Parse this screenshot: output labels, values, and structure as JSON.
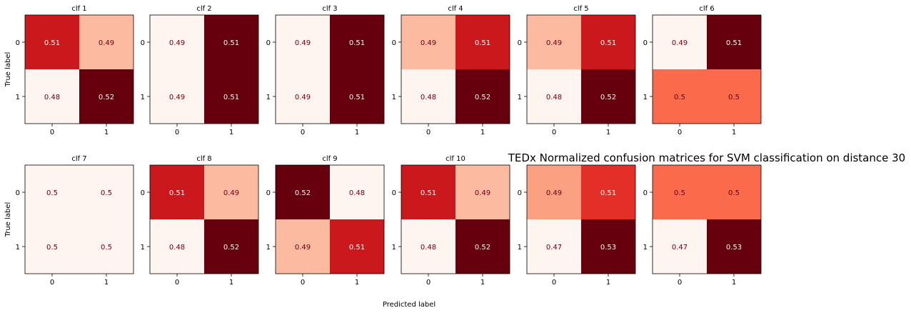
{
  "figure": {
    "suptitle": "TEDx Normalized confusion matrices for SVM classification on distance 30",
    "xlabel": "Predicted label",
    "ylabel": "True label"
  },
  "colormap": [
    "#fff5f0",
    "#fee0d2",
    "#fcbba1",
    "#fc9272",
    "#fb6a4a",
    "#ef3b2c",
    "#cb181d",
    "#a50f15",
    "#67000d"
  ],
  "text_colors": {
    "on_light": "#67000d",
    "on_dark": "#fff5f0"
  },
  "chart_data": [
    {
      "type": "heatmap",
      "title": "clf 1",
      "x_ticks": [
        "0",
        "1"
      ],
      "y_ticks": [
        "0",
        "1"
      ],
      "values": [
        [
          0.51,
          0.49
        ],
        [
          0.48,
          0.52
        ]
      ],
      "labels": [
        [
          "0.51",
          "0.49"
        ],
        [
          "0.48",
          "0.52"
        ]
      ]
    },
    {
      "type": "heatmap",
      "title": "clf 2",
      "x_ticks": [
        "0",
        "1"
      ],
      "y_ticks": [
        "0",
        "1"
      ],
      "values": [
        [
          0.49,
          0.51
        ],
        [
          0.49,
          0.51
        ]
      ],
      "labels": [
        [
          "0.49",
          "0.51"
        ],
        [
          "0.49",
          "0.51"
        ]
      ]
    },
    {
      "type": "heatmap",
      "title": "clf 3",
      "x_ticks": [
        "0",
        "1"
      ],
      "y_ticks": [
        "0",
        "1"
      ],
      "values": [
        [
          0.49,
          0.51
        ],
        [
          0.49,
          0.51
        ]
      ],
      "labels": [
        [
          "0.49",
          "0.51"
        ],
        [
          "0.49",
          "0.51"
        ]
      ]
    },
    {
      "type": "heatmap",
      "title": "clf 4",
      "x_ticks": [
        "0",
        "1"
      ],
      "y_ticks": [
        "0",
        "1"
      ],
      "values": [
        [
          0.49,
          0.51
        ],
        [
          0.48,
          0.52
        ]
      ],
      "labels": [
        [
          "0.49",
          "0.51"
        ],
        [
          "0.48",
          "0.52"
        ]
      ]
    },
    {
      "type": "heatmap",
      "title": "clf 5",
      "x_ticks": [
        "0",
        "1"
      ],
      "y_ticks": [
        "0",
        "1"
      ],
      "values": [
        [
          0.49,
          0.51
        ],
        [
          0.48,
          0.52
        ]
      ],
      "labels": [
        [
          "0.49",
          "0.51"
        ],
        [
          "0.48",
          "0.52"
        ]
      ]
    },
    {
      "type": "heatmap",
      "title": "clf 6",
      "x_ticks": [
        "0",
        "1"
      ],
      "y_ticks": [
        "0",
        "1"
      ],
      "values": [
        [
          0.49,
          0.51
        ],
        [
          0.5,
          0.5
        ]
      ],
      "labels": [
        [
          "0.49",
          "0.51"
        ],
        [
          "0.5",
          "0.5"
        ]
      ]
    },
    {
      "type": "heatmap",
      "title": "clf 7",
      "x_ticks": [
        "0",
        "1"
      ],
      "y_ticks": [
        "0",
        "1"
      ],
      "values": [
        [
          0.5,
          0.5
        ],
        [
          0.5,
          0.5
        ]
      ],
      "labels": [
        [
          "0.5",
          "0.5"
        ],
        [
          "0.5",
          "0.5"
        ]
      ]
    },
    {
      "type": "heatmap",
      "title": "clf 8",
      "x_ticks": [
        "0",
        "1"
      ],
      "y_ticks": [
        "0",
        "1"
      ],
      "values": [
        [
          0.51,
          0.49
        ],
        [
          0.48,
          0.52
        ]
      ],
      "labels": [
        [
          "0.51",
          "0.49"
        ],
        [
          "0.48",
          "0.52"
        ]
      ]
    },
    {
      "type": "heatmap",
      "title": "clf 9",
      "x_ticks": [
        "0",
        "1"
      ],
      "y_ticks": [
        "0",
        "1"
      ],
      "values": [
        [
          0.52,
          0.48
        ],
        [
          0.49,
          0.51
        ]
      ],
      "labels": [
        [
          "0.52",
          "0.48"
        ],
        [
          "0.49",
          "0.51"
        ]
      ]
    },
    {
      "type": "heatmap",
      "title": "clf 10",
      "x_ticks": [
        "0",
        "1"
      ],
      "y_ticks": [
        "0",
        "1"
      ],
      "values": [
        [
          0.51,
          0.49
        ],
        [
          0.48,
          0.52
        ]
      ],
      "labels": [
        [
          "0.51",
          "0.49"
        ],
        [
          "0.48",
          "0.52"
        ]
      ]
    },
    {
      "type": "heatmap",
      "title": "",
      "x_ticks": [
        "0",
        "1"
      ],
      "y_ticks": [
        "0",
        "1"
      ],
      "values": [
        [
          0.49,
          0.51
        ],
        [
          0.47,
          0.53
        ]
      ],
      "labels": [
        [
          "0.49",
          "0.51"
        ],
        [
          "0.47",
          "0.53"
        ]
      ]
    },
    {
      "type": "heatmap",
      "title": "",
      "x_ticks": [
        "0",
        "1"
      ],
      "y_ticks": [
        "0",
        "1"
      ],
      "values": [
        [
          0.5,
          0.5
        ],
        [
          0.47,
          0.53
        ]
      ],
      "labels": [
        [
          "0.5",
          "0.5"
        ],
        [
          "0.47",
          "0.53"
        ]
      ]
    }
  ]
}
